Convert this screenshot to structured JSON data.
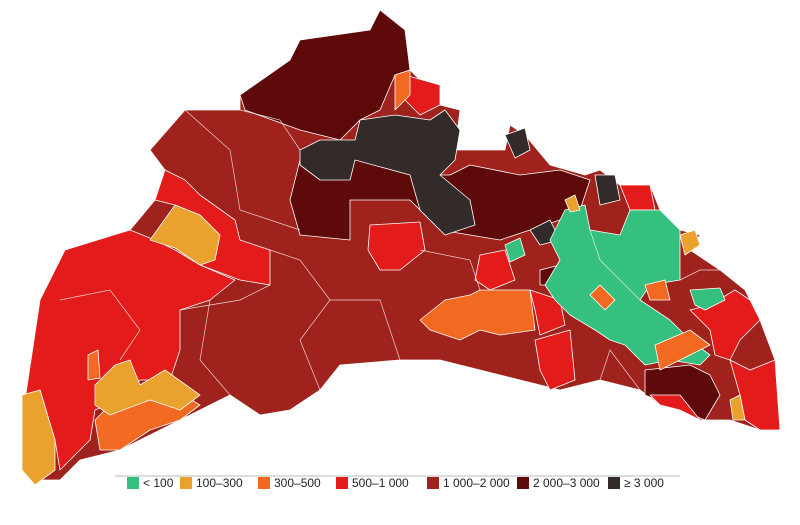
{
  "legend": {
    "items": [
      {
        "label": "< 100",
        "color": "#35c07f"
      },
      {
        "label": "100–300",
        "color": "#eba12d"
      },
      {
        "label": "300–500",
        "color": "#f26a21"
      },
      {
        "label": "500–1 000",
        "color": "#e31b1b"
      },
      {
        "label": "1 000–2 000",
        "color": "#a0221c"
      },
      {
        "label": "2 000–3 000",
        "color": "#5e0a0a"
      },
      {
        "label": "≥ 3 000",
        "color": "#332b2a"
      }
    ]
  }
}
